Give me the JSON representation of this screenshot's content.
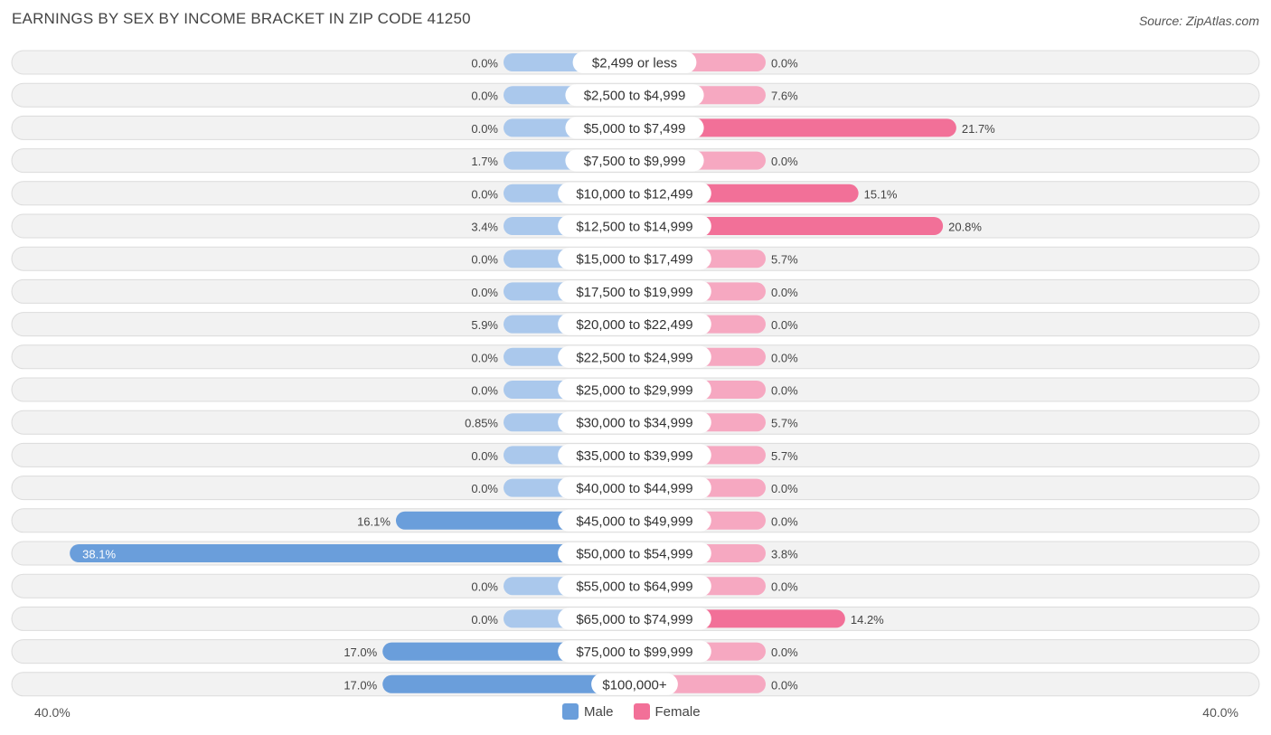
{
  "title": "EARNINGS BY SEX BY INCOME BRACKET IN ZIP CODE 41250",
  "source": "Source: ZipAtlas.com",
  "axis": {
    "left_label": "40.0%",
    "right_label": "40.0%"
  },
  "legend": {
    "male": "Male",
    "female": "Female"
  },
  "colors": {
    "male": "#aac8ec",
    "male_strong": "#6a9edb",
    "female": "#f6a8c1",
    "female_strong": "#f27098"
  },
  "chart_data": {
    "type": "bar",
    "orientation": "horizontal-diverging",
    "title": "EARNINGS BY SEX BY INCOME BRACKET IN ZIP CODE 41250",
    "xlim": [
      -40,
      40
    ],
    "categories": [
      "$2,499 or less",
      "$2,500 to $4,999",
      "$5,000 to $7,499",
      "$7,500 to $9,999",
      "$10,000 to $12,499",
      "$12,500 to $14,999",
      "$15,000 to $17,499",
      "$17,500 to $19,999",
      "$20,000 to $22,499",
      "$22,500 to $24,999",
      "$25,000 to $29,999",
      "$30,000 to $34,999",
      "$35,000 to $39,999",
      "$40,000 to $44,999",
      "$45,000 to $49,999",
      "$50,000 to $54,999",
      "$55,000 to $64,999",
      "$65,000 to $74,999",
      "$75,000 to $99,999",
      "$100,000+"
    ],
    "series": [
      {
        "name": "Male",
        "values": [
          0.0,
          0.0,
          0.0,
          1.7,
          0.0,
          3.4,
          0.0,
          0.0,
          5.9,
          0.0,
          0.0,
          0.85,
          0.0,
          0.0,
          16.1,
          38.1,
          0.0,
          0.0,
          17.0,
          17.0
        ],
        "labels": [
          "0.0%",
          "0.0%",
          "0.0%",
          "1.7%",
          "0.0%",
          "3.4%",
          "0.0%",
          "0.0%",
          "5.9%",
          "0.0%",
          "0.0%",
          "0.85%",
          "0.0%",
          "0.0%",
          "16.1%",
          "38.1%",
          "0.0%",
          "0.0%",
          "17.0%",
          "17.0%"
        ]
      },
      {
        "name": "Female",
        "values": [
          0.0,
          7.6,
          21.7,
          0.0,
          15.1,
          20.8,
          5.7,
          0.0,
          0.0,
          0.0,
          0.0,
          5.7,
          5.7,
          0.0,
          0.0,
          3.8,
          0.0,
          14.2,
          0.0,
          0.0
        ],
        "labels": [
          "0.0%",
          "7.6%",
          "21.7%",
          "0.0%",
          "15.1%",
          "20.8%",
          "5.7%",
          "0.0%",
          "0.0%",
          "0.0%",
          "0.0%",
          "5.7%",
          "5.7%",
          "0.0%",
          "0.0%",
          "3.8%",
          "0.0%",
          "14.2%",
          "0.0%",
          "0.0%"
        ]
      }
    ]
  }
}
